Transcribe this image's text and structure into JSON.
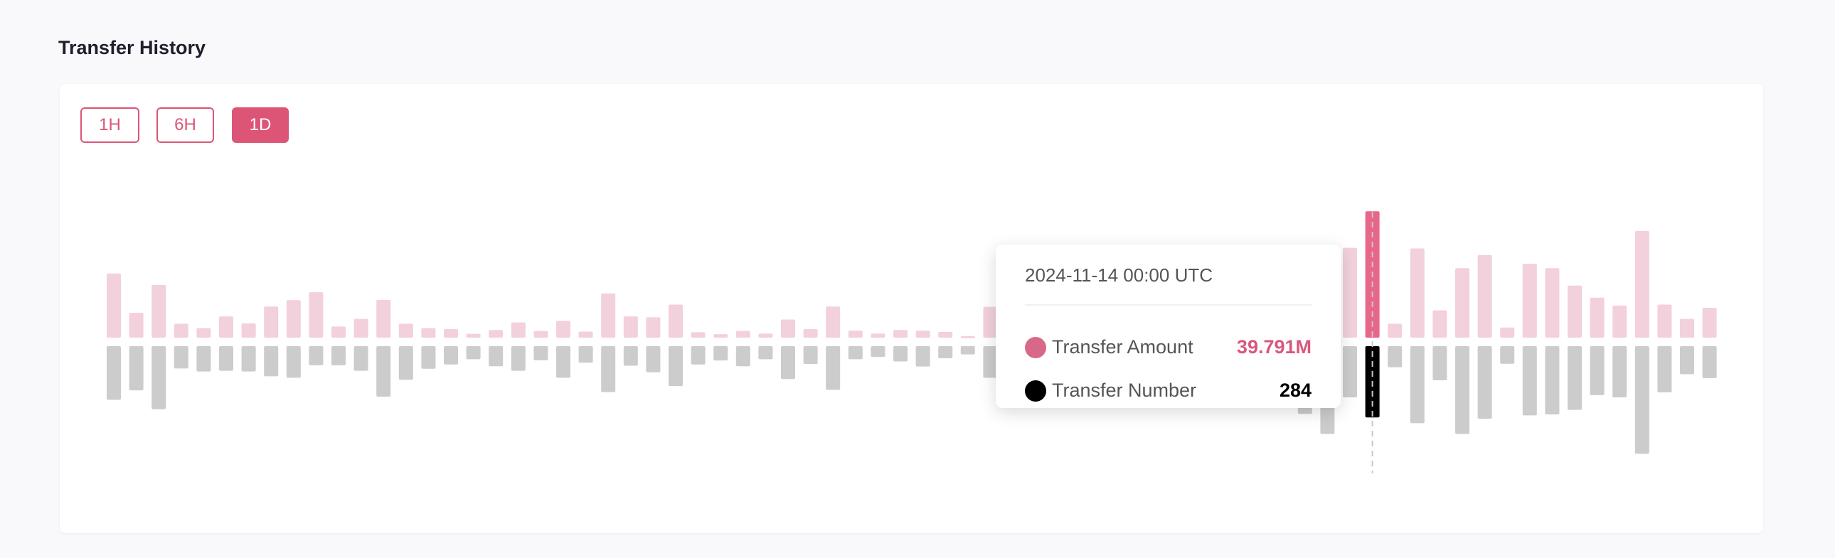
{
  "title": "Transfer History",
  "ranges": [
    {
      "label": "1H",
      "active": false
    },
    {
      "label": "6H",
      "active": false
    },
    {
      "label": "1D",
      "active": true
    }
  ],
  "colors": {
    "accent": "#dc5577",
    "amount": "#f2d0dc",
    "amount_highlight": "#e8668a",
    "number": "#cccccc",
    "number_highlight": "#000000"
  },
  "tooltip": {
    "date": "2024-11-14 00:00 UTC",
    "amount_label": "Transfer Amount",
    "amount_value": "39.791M",
    "number_label": "Transfer Number",
    "number_value": "284"
  },
  "chart_data": {
    "type": "bar",
    "series": [
      {
        "name": "Transfer Amount",
        "unit": "M",
        "direction": "up",
        "values": [
          20.2,
          7.8,
          16.6,
          4.4,
          3.0,
          6.7,
          4.5,
          9.8,
          11.8,
          14.3,
          3.5,
          5.9,
          11.9,
          4.4,
          3.0,
          2.7,
          1.2,
          2.4,
          4.8,
          2.1,
          5.3,
          1.9,
          13.9,
          6.7,
          6.4,
          10.4,
          1.7,
          1.1,
          2.1,
          1.3,
          5.7,
          2.7,
          9.8,
          2.2,
          1.3,
          2.4,
          2.2,
          1.8,
          0.5,
          9.7,
          null,
          null,
          null,
          null,
          null,
          null,
          null,
          null,
          null,
          null,
          null,
          null,
          null,
          null,
          null,
          28.3,
          39.791,
          4.4,
          28.1,
          8.6,
          21.9,
          26.0,
          3.2,
          23.3,
          21.9,
          16.4,
          12.6,
          10.1,
          33.6,
          10.4,
          5.9,
          9.4
        ]
      },
      {
        "name": "Transfer Number",
        "direction": "down",
        "values": [
          214,
          176,
          251,
          89,
          101,
          98,
          101,
          120,
          126,
          76,
          76,
          98,
          201,
          134,
          90,
          73,
          52,
          80,
          98,
          56,
          126,
          66,
          183,
          78,
          104,
          159,
          73,
          57,
          80,
          52,
          131,
          71,
          174,
          52,
          43,
          61,
          81,
          48,
          33,
          126,
          null,
          null,
          null,
          null,
          null,
          null,
          null,
          null,
          null,
          null,
          null,
          null,
          null,
          270,
          350,
          204,
          284,
          84,
          307,
          136,
          350,
          289,
          70,
          276,
          272,
          254,
          195,
          204,
          429,
          184,
          112,
          127
        ]
      }
    ],
    "highlight_index": 56,
    "grid": false,
    "axes_visible": false
  }
}
